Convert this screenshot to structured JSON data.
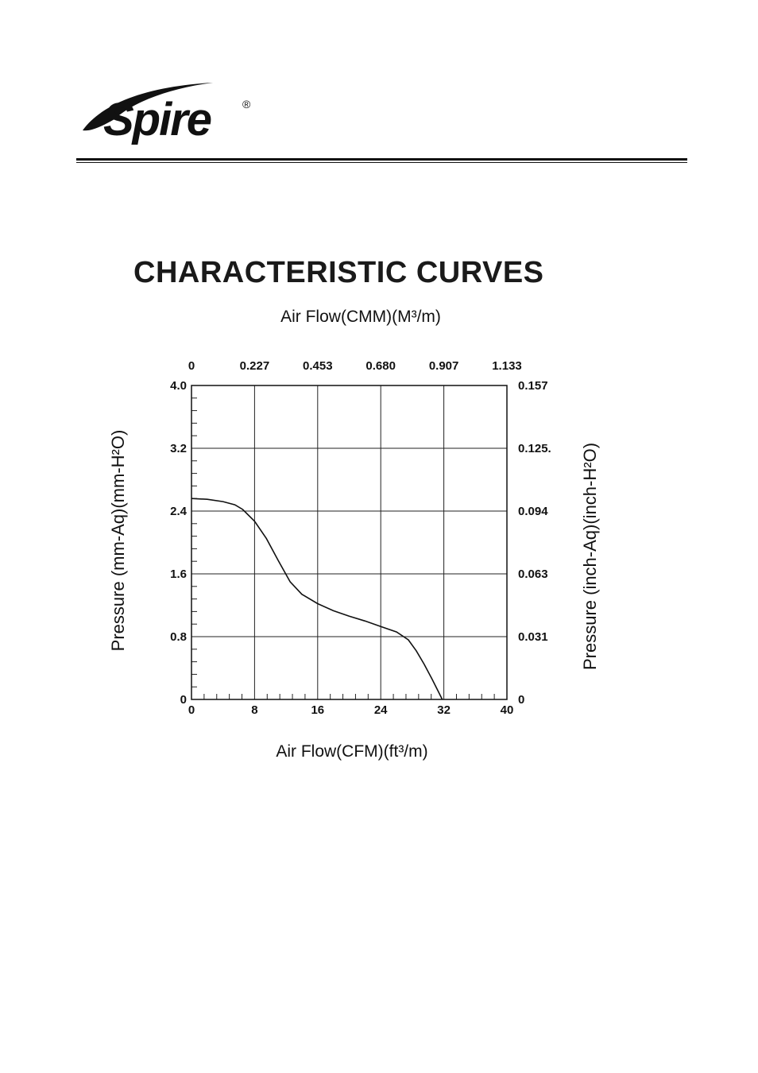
{
  "brand": {
    "name": "Spire",
    "registered_mark": "®"
  },
  "chart_data": {
    "type": "line",
    "title": "CHARACTERISTIC CURVES",
    "xlabel": "Air Flow(CFM)(ft³/m)",
    "x2label": "Air Flow(CMM)(M³/m)",
    "ylabel": "Pressure (mm-Aq)(mm-H²O)",
    "y2label": "Pressure (inch-Aq)(inch-H²O)",
    "xlim": [
      0,
      40
    ],
    "ylim": [
      0,
      4.0
    ],
    "x_ticks": [
      "0",
      "8",
      "16",
      "24",
      "32",
      "40"
    ],
    "x2_ticks": [
      "0",
      "0.227",
      "0.453",
      "0.680",
      "0.907",
      "1.133"
    ],
    "y_ticks": [
      "0",
      "0.8",
      "1.6",
      "2.4",
      "3.2",
      "4.0"
    ],
    "y2_ticks": [
      "0",
      "0.031",
      "0.063",
      "0.094",
      "0.125.",
      "0.157"
    ],
    "grid": true,
    "series": [
      {
        "x": [
          0,
          2,
          4,
          5.5,
          6.5,
          8,
          9.5,
          11,
          12.5,
          14,
          16,
          18,
          20,
          22,
          24,
          26,
          27.5,
          28.5,
          29.5,
          30.5,
          31.3,
          31.8
        ],
        "y": [
          2.56,
          2.55,
          2.52,
          2.48,
          2.42,
          2.27,
          2.05,
          1.77,
          1.5,
          1.34,
          1.22,
          1.13,
          1.06,
          1.0,
          0.93,
          0.86,
          0.76,
          0.62,
          0.45,
          0.26,
          0.1,
          0.0
        ]
      }
    ]
  }
}
